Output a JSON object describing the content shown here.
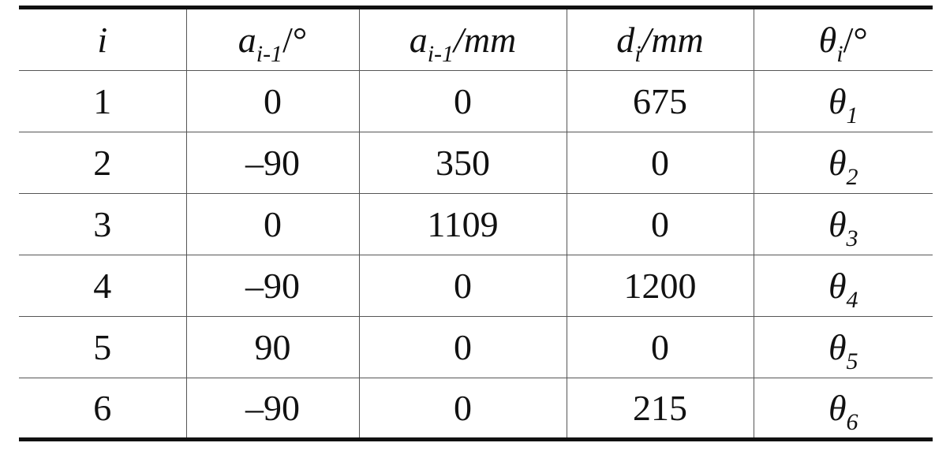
{
  "table": {
    "header": [
      {
        "main": "i"
      },
      {
        "main": "a",
        "sub": "i-1",
        "unit": "/°"
      },
      {
        "main": "a",
        "sub": "i-1",
        "unit": "/mm"
      },
      {
        "main": "d",
        "sub": "i",
        "unit": "/mm"
      },
      {
        "main": "θ",
        "sub": "i",
        "unit": "/°"
      }
    ],
    "rows": [
      [
        "1",
        "0",
        "0",
        "675",
        {
          "main": "θ",
          "sub": "1"
        }
      ],
      [
        "2",
        "–90",
        "350",
        "0",
        {
          "main": "θ",
          "sub": "2"
        }
      ],
      [
        "3",
        "0",
        "1109",
        "0",
        {
          "main": "θ",
          "sub": "3"
        }
      ],
      [
        "4",
        "–90",
        "0",
        "1200",
        {
          "main": "θ",
          "sub": "4"
        }
      ],
      [
        "5",
        "90",
        "0",
        "0",
        {
          "main": "θ",
          "sub": "5"
        }
      ],
      [
        "6",
        "–90",
        "0",
        "215",
        {
          "main": "θ",
          "sub": "6"
        }
      ]
    ]
  }
}
